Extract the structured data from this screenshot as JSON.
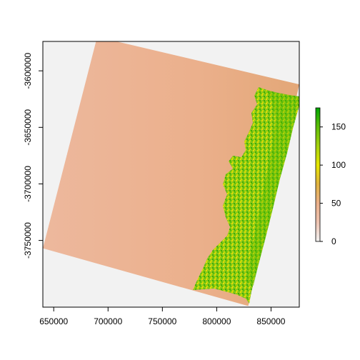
{
  "chart_data": {
    "type": "heatmap",
    "title": "",
    "xlabel": "",
    "ylabel": "",
    "xlim": [
      640000,
      876000
    ],
    "ylim": [
      -3809000,
      -3574000
    ],
    "x_ticks": [
      650000,
      700000,
      750000,
      800000,
      850000
    ],
    "x_tick_labels": [
      "650000",
      "700000",
      "750000",
      "800000",
      "850000"
    ],
    "y_ticks": [
      -3600000,
      -3650000,
      -3700000,
      -3750000
    ],
    "y_tick_labels": [
      "-3600000",
      "-3650000",
      "-3700000",
      "-3750000"
    ],
    "raster_footprint": [
      {
        "x": 690000,
        "y": -3570000
      },
      {
        "x": 876000,
        "y": -3612000
      },
      {
        "x": 829000,
        "y": -3808000
      },
      {
        "x": 640000,
        "y": -3757000
      }
    ],
    "legend": {
      "position": "right",
      "min": 0,
      "max": 175,
      "ticks": [
        0,
        50,
        100,
        150
      ],
      "tick_labels": [
        "0",
        "50",
        "100",
        "150"
      ],
      "stops": [
        {
          "value": 0,
          "color": "#F2F2F2"
        },
        {
          "value": 25,
          "color": "#EEC3B1"
        },
        {
          "value": 50,
          "color": "#EBB08A"
        },
        {
          "value": 75,
          "color": "#E0B240"
        },
        {
          "value": 100,
          "color": "#E6E600"
        },
        {
          "value": 125,
          "color": "#A6D20E"
        },
        {
          "value": 150,
          "color": "#5FBE07"
        },
        {
          "value": 175,
          "color": "#00A600"
        }
      ]
    },
    "background_color": "#F2F2F2",
    "grid": false
  }
}
